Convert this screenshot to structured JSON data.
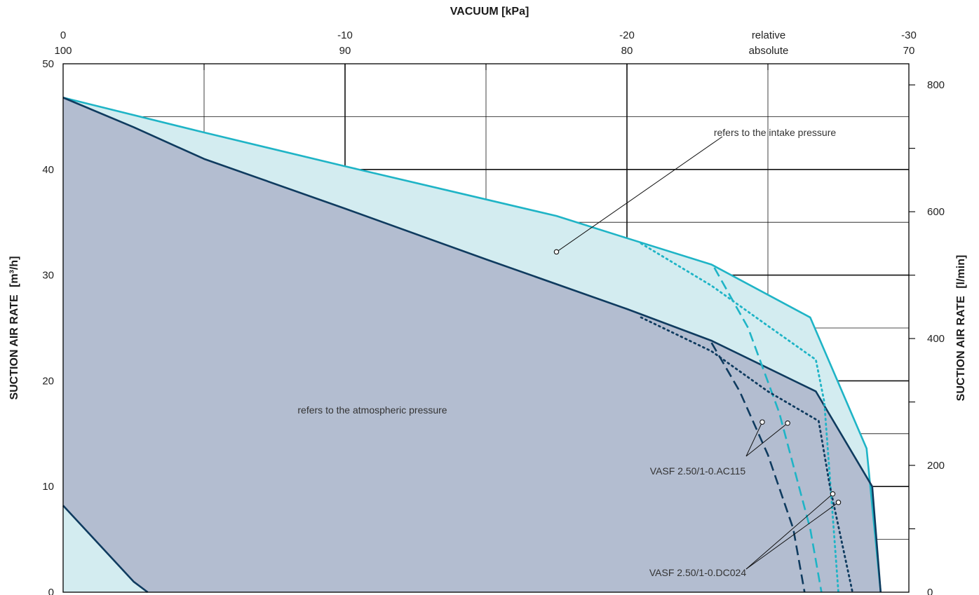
{
  "chart_data": {
    "type": "line",
    "title": "VACUUM [kPa]",
    "top_axis": {
      "relative_ticks": [
        "0",
        "-10",
        "-20",
        "-30"
      ],
      "absolute_ticks": [
        "100",
        "90",
        "80",
        "70"
      ],
      "relative_label": "relative",
      "absolute_label": "absolute",
      "range_relative": [
        0,
        -30
      ]
    },
    "y_left": {
      "label": "SUCTION AIR RATE",
      "unit": "[m³/h]",
      "ticks": [
        "0",
        "10",
        "20",
        "30",
        "40",
        "50"
      ],
      "ylim": [
        0,
        50
      ]
    },
    "y_right": {
      "label": "SUCTION AIR RATE",
      "unit": "[l/min]",
      "ticks": [
        "0",
        "200",
        "400",
        "600",
        "800"
      ],
      "ylim": [
        0,
        833.3
      ]
    },
    "grid": true,
    "series": [
      {
        "name": "refers to the intake pressure",
        "style": "solid",
        "color": "#1fb4c6",
        "x": [
          0,
          -5,
          -10,
          -17.5,
          -20,
          -23,
          -26.5,
          -28.5,
          -29
        ],
        "y": [
          46.8,
          43.5,
          40.3,
          35.6,
          33.5,
          31,
          26,
          13.6,
          0
        ]
      },
      {
        "name": "refers to the atmospheric pressure",
        "style": "solid",
        "color": "#0f3b5f",
        "x": [
          0,
          -2.5,
          -5,
          -10,
          -15,
          -20,
          -23,
          -26.7,
          -28.7,
          -29
        ],
        "y": [
          46.8,
          44,
          41,
          36.3,
          31.5,
          26.8,
          23.8,
          19,
          10,
          0
        ]
      },
      {
        "name": "VASF 2.50/1-0.AC115",
        "style": "dashed",
        "color": "#1fb4c6",
        "x": [
          -23.1,
          -24.3,
          -25.4,
          -26.5,
          -26.9
        ],
        "y": [
          30.7,
          25,
          17,
          6,
          0
        ]
      },
      {
        "name": "VASF 2.50/1-0.AC115",
        "style": "dashed",
        "color": "#0f3b5f",
        "x": [
          -23,
          -24,
          -25,
          -25.9,
          -26.3
        ],
        "y": [
          23.6,
          19,
          13,
          6,
          0
        ]
      },
      {
        "name": "VASF 2.50/1-0.DC024",
        "style": "dotted",
        "color": "#1fb4c6",
        "x": [
          -20.5,
          -23,
          -25,
          -26.7,
          -27,
          -27.5
        ],
        "y": [
          33,
          29,
          25.2,
          22,
          18,
          0
        ]
      },
      {
        "name": "VASF 2.50/1-0.DC024",
        "style": "dotted",
        "color": "#0f3b5f",
        "x": [
          -20.5,
          -23,
          -25,
          -26.8,
          -27.2,
          -28
        ],
        "y": [
          26,
          22.8,
          19,
          16.2,
          10,
          0
        ]
      },
      {
        "name": "",
        "style": "solid",
        "color": "#0f3b5f",
        "x": [
          0,
          -2.5,
          -3
        ],
        "y": [
          8.2,
          1,
          0
        ]
      }
    ],
    "annotations": [
      {
        "text": "refers to the intake pressure",
        "point": [
          -17.5,
          32.2
        ]
      },
      {
        "text": "refers to the atmospheric pressure"
      },
      {
        "text": "VASF 2.50/1-0.AC115",
        "points": [
          [
            -24.8,
            16.1
          ],
          [
            -25.7,
            16
          ]
        ]
      },
      {
        "text": "VASF 2.50/1-0.DC024",
        "points": [
          [
            -27.3,
            9.3
          ],
          [
            -27.5,
            8.5
          ]
        ]
      }
    ]
  }
}
